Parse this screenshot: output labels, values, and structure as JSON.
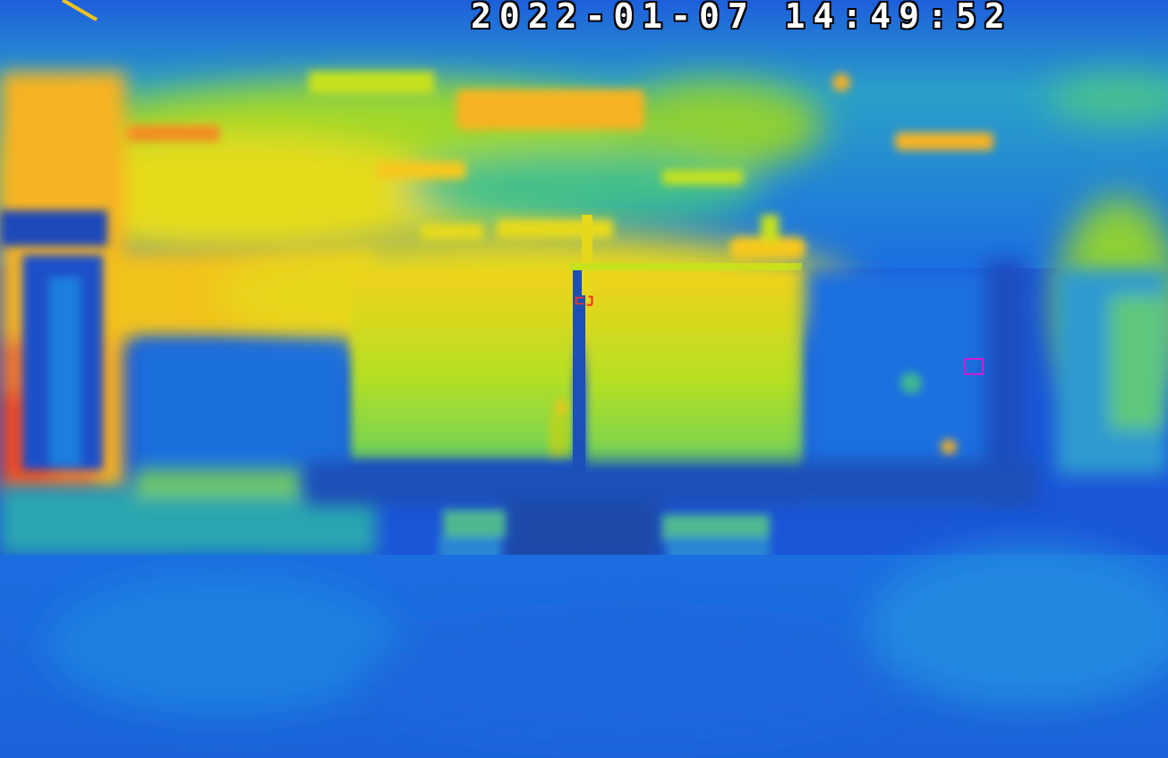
{
  "overlay": {
    "timestamp": "2022-01-07 14:49:52"
  },
  "palette": {
    "cold": "#1a4fd6",
    "cool": "#1f86e0",
    "mid": "#2fb6a6",
    "warm": "#c7e21c",
    "hot": "#f7b321",
    "hottest": "#f24a21"
  },
  "marker_color": "#d21bd6"
}
